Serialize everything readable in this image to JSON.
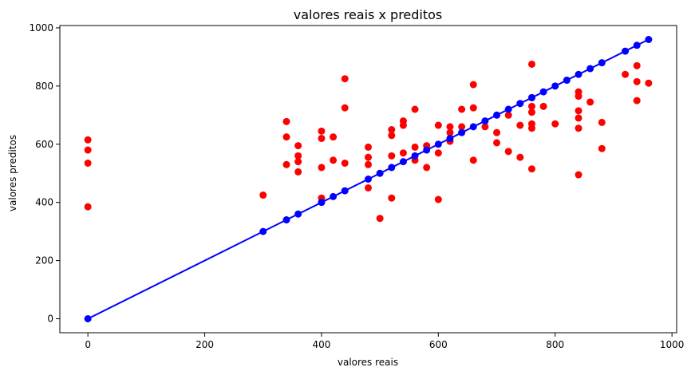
{
  "chart_data": {
    "type": "scatter",
    "title": "valores reais x preditos",
    "xlabel": "valores reais",
    "ylabel": "valores preditos",
    "xlim": [
      -48,
      1008
    ],
    "ylim": [
      -48,
      1008
    ],
    "xticks": [
      0,
      200,
      400,
      600,
      800,
      1000
    ],
    "yticks": [
      0,
      200,
      400,
      600,
      800,
      1000
    ],
    "grid": false,
    "legend": "none",
    "series": [
      {
        "kind": "scatter",
        "color": "#ff0000",
        "x": [
          0,
          0,
          0,
          0,
          300,
          340,
          340,
          340,
          360,
          360,
          360,
          360,
          400,
          400,
          400,
          400,
          420,
          420,
          440,
          440,
          440,
          480,
          480,
          480,
          480,
          500,
          520,
          520,
          520,
          520,
          540,
          540,
          540,
          560,
          560,
          560,
          580,
          580,
          600,
          600,
          600,
          620,
          620,
          620,
          640,
          640,
          660,
          660,
          660,
          680,
          700,
          700,
          720,
          720,
          740,
          740,
          760,
          760,
          760,
          760,
          760,
          760,
          760,
          780,
          800,
          840,
          840,
          840,
          840,
          840,
          840,
          860,
          880,
          880,
          920,
          940,
          940,
          940,
          960
        ],
        "y": [
          615,
          580,
          535,
          385,
          425,
          678,
          625,
          530,
          595,
          560,
          540,
          505,
          645,
          620,
          520,
          415,
          625,
          545,
          825,
          725,
          535,
          590,
          555,
          530,
          450,
          345,
          650,
          630,
          560,
          415,
          680,
          665,
          570,
          720,
          590,
          545,
          595,
          520,
          665,
          570,
          410,
          660,
          640,
          610,
          720,
          660,
          805,
          725,
          545,
          660,
          640,
          605,
          700,
          575,
          665,
          555,
          875,
          760,
          730,
          710,
          670,
          655,
          515,
          730,
          670,
          780,
          765,
          715,
          690,
          655,
          495,
          745,
          675,
          585,
          840,
          870,
          815,
          750,
          810
        ]
      },
      {
        "kind": "line-with-markers",
        "color": "#0000ff",
        "x": [
          0,
          300,
          340,
          360,
          400,
          420,
          440,
          480,
          500,
          520,
          540,
          560,
          580,
          600,
          620,
          640,
          660,
          680,
          700,
          720,
          740,
          760,
          780,
          800,
          820,
          840,
          860,
          880,
          920,
          940,
          960
        ],
        "y": [
          0,
          300,
          340,
          360,
          400,
          420,
          440,
          480,
          500,
          520,
          540,
          560,
          580,
          600,
          620,
          640,
          660,
          680,
          700,
          720,
          740,
          760,
          780,
          800,
          820,
          840,
          860,
          880,
          920,
          940,
          960
        ]
      }
    ]
  }
}
